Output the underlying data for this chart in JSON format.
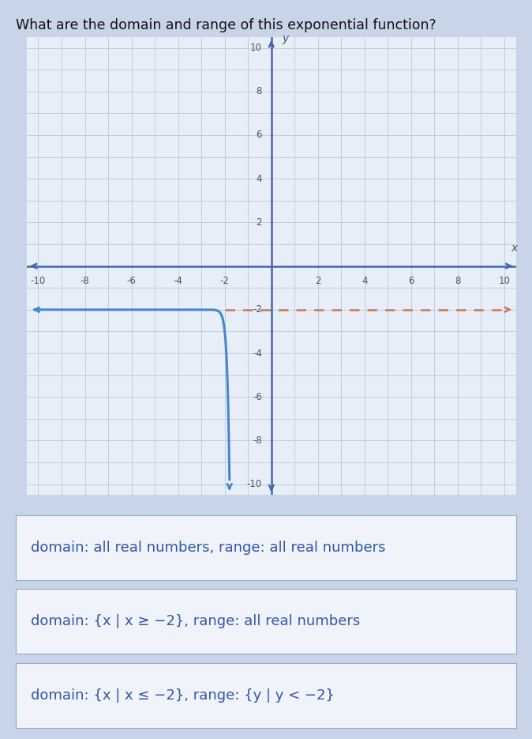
{
  "title": "What are the domain and range of this exponential function?",
  "title_fontsize": 12.5,
  "bg_color": "#c8d4e8",
  "graph_bg_color": "#e8eef8",
  "answer_bg_color": "#f0f4fa",
  "grid_color": "#b8c8dc",
  "axis_color": "#4466aa",
  "curve_color": "#4488cc",
  "asymptote_color": "#cc7755",
  "xmin": -10,
  "xmax": 10,
  "ymin": -10,
  "ymax": 10,
  "xticks": [
    -10,
    -8,
    -6,
    -4,
    -2,
    2,
    4,
    6,
    8,
    10
  ],
  "yticks": [
    -10,
    -8,
    -6,
    -4,
    -2,
    2,
    4,
    6,
    8,
    10
  ],
  "asymptote_y": -2,
  "vertical_asymptote_x": -2,
  "answers": [
    "domain: all real numbers, range: all real numbers",
    "domain: {x | x ≥ −2}, range: all real numbers",
    "domain: {x | x ≤ −2}, range: {y | y < −2}"
  ],
  "answer_fontsize": 13,
  "answer_color": "#3355aa"
}
